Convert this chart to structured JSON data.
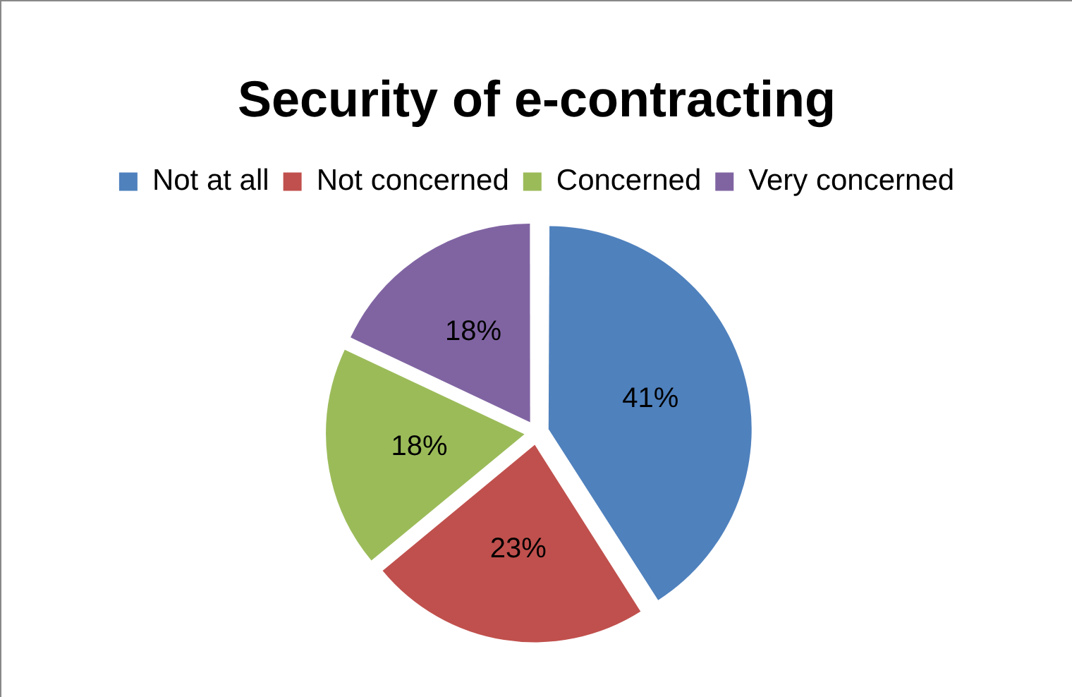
{
  "chart_data": {
    "type": "pie",
    "title": "Security of e-contracting",
    "categories": [
      "Not at all",
      "Not concerned",
      "Concerned",
      "Very concerned"
    ],
    "values": [
      41,
      23,
      18,
      18
    ],
    "colors": [
      "#4f81bd",
      "#c0504d",
      "#9bbb59",
      "#8064a2"
    ],
    "value_labels": [
      "41%",
      "23%",
      "18%",
      "18%"
    ],
    "legend": "top"
  }
}
